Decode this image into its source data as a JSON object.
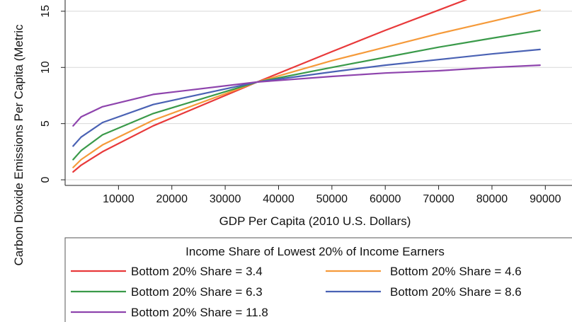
{
  "chart_data": {
    "type": "line",
    "title": "",
    "xlabel": "GDP Per Capita (2010 U.S. Dollars)",
    "ylabel": "Carbon Dioxide Emissions Per Capita (Metric",
    "xlim": [
      0,
      95000
    ],
    "ylim": [
      -0.5,
      16
    ],
    "xticks": [
      10000,
      20000,
      30000,
      40000,
      50000,
      60000,
      70000,
      80000,
      90000
    ],
    "xtick_labels": [
      "10000",
      "20000",
      "30000",
      "40000",
      "50000",
      "60000",
      "70000",
      "80000",
      "90000"
    ],
    "yticks": [
      0,
      5,
      10,
      15
    ],
    "ytick_labels": [
      "0",
      "5",
      "10",
      "15"
    ],
    "grid": true,
    "legend": {
      "title": "Income Share of Lowest 20% of Income Earners",
      "placement": "bottom"
    },
    "series": [
      {
        "name": "Bottom 20% Share = 3.4",
        "color": "#e8393a",
        "x": [
          1500,
          3000,
          7000,
          16500,
          36000,
          50000,
          60000,
          70000,
          80000
        ],
        "y": [
          0.7,
          1.3,
          2.5,
          4.8,
          8.7,
          11.4,
          13.3,
          15.1,
          16.9
        ]
      },
      {
        "name": "Bottom 20% Share = 4.6",
        "color": "#f59a3a",
        "x": [
          1500,
          3000,
          7000,
          16500,
          36000,
          50000,
          60000,
          70000,
          80000,
          89000
        ],
        "y": [
          1.1,
          1.8,
          3.1,
          5.3,
          8.7,
          10.6,
          11.8,
          13.0,
          14.1,
          15.1
        ]
      },
      {
        "name": "Bottom 20% Share = 6.3",
        "color": "#3a9a4a",
        "x": [
          1500,
          3000,
          7000,
          16500,
          36000,
          50000,
          60000,
          70000,
          80000,
          89000
        ],
        "y": [
          1.8,
          2.6,
          4.0,
          5.9,
          8.7,
          10.0,
          10.9,
          11.8,
          12.6,
          13.3
        ]
      },
      {
        "name": "Bottom 20% Share = 8.6",
        "color": "#4a62b4",
        "x": [
          1500,
          3000,
          7000,
          16500,
          36000,
          50000,
          60000,
          70000,
          80000,
          89000
        ],
        "y": [
          3.0,
          3.8,
          5.1,
          6.7,
          8.7,
          9.6,
          10.2,
          10.7,
          11.2,
          11.6
        ]
      },
      {
        "name": "Bottom 20% Share = 11.8",
        "color": "#8e44ad",
        "x": [
          1500,
          3000,
          7000,
          16500,
          36000,
          50000,
          60000,
          70000,
          80000,
          89000
        ],
        "y": [
          4.8,
          5.6,
          6.5,
          7.6,
          8.7,
          9.2,
          9.5,
          9.7,
          10.0,
          10.2
        ]
      }
    ]
  }
}
